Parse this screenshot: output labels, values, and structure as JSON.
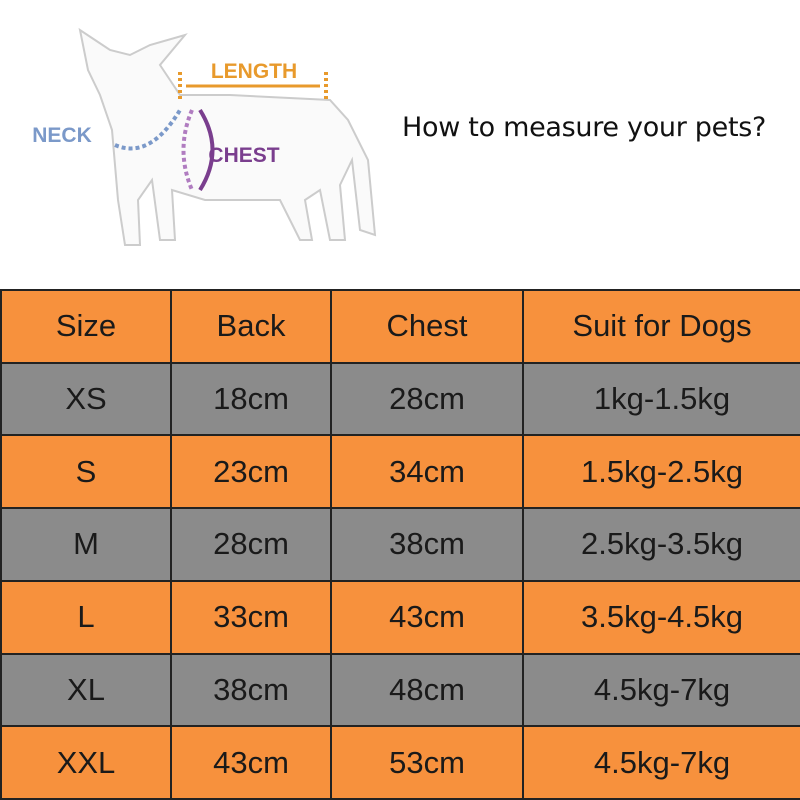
{
  "diagram": {
    "labels": {
      "length": "LENGTH",
      "neck": "NECK",
      "chest": "CHEST"
    },
    "heading": "How to measure your pets?"
  },
  "table": {
    "header": [
      "Size",
      "Back",
      "Chest",
      "Suit for Dogs"
    ],
    "rows": [
      [
        "XS",
        "18cm",
        "28cm",
        "1kg-1.5kg"
      ],
      [
        "S",
        "23cm",
        "34cm",
        "1.5kg-2.5kg"
      ],
      [
        "M",
        "28cm",
        "38cm",
        "2.5kg-3.5kg"
      ],
      [
        "L",
        "33cm",
        "43cm",
        "3.5kg-4.5kg"
      ],
      [
        "XL",
        "38cm",
        "48cm",
        "4.5kg-7kg"
      ],
      [
        "XXL",
        "43cm",
        "53cm",
        "4.5kg-7kg"
      ]
    ]
  }
}
